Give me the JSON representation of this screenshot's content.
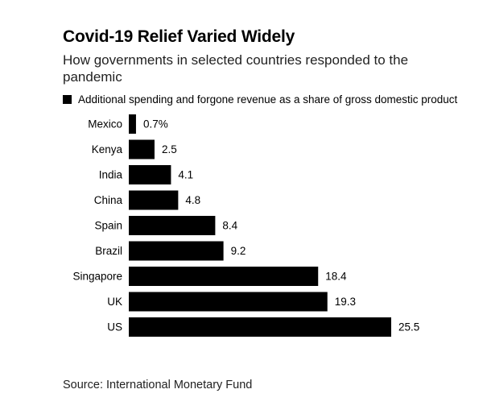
{
  "chart_data": {
    "type": "bar",
    "orientation": "horizontal",
    "title": "Covid-19 Relief Varied Widely",
    "subtitle": "How governments in selected countries responded to the pandemic",
    "series": [
      {
        "name": "Additional spending and forgone revenue as a share of gross domestic product",
        "color": "#000000"
      }
    ],
    "categories": [
      "Mexico",
      "Kenya",
      "India",
      "China",
      "Spain",
      "Brazil",
      "Singapore",
      "UK",
      "US"
    ],
    "values": [
      0.7,
      2.5,
      4.1,
      4.8,
      8.4,
      9.2,
      18.4,
      19.3,
      25.5
    ],
    "value_labels": [
      "0.7%",
      "2.5",
      "4.1",
      "4.8",
      "8.4",
      "9.2",
      "18.4",
      "19.3",
      "25.5"
    ],
    "xlim": [
      0,
      25.5
    ],
    "grid": false,
    "legend_position": "top-left"
  },
  "source": "Source: International Monetary Fund"
}
